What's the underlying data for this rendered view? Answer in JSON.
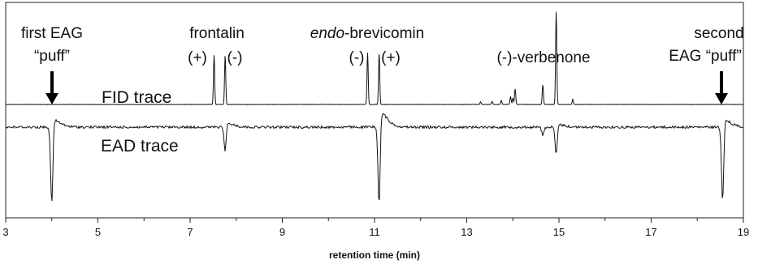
{
  "chart_data": {
    "type": "line",
    "xlabel": "retention time (min)",
    "ylabel": "",
    "xlim": [
      3,
      19
    ],
    "xticks": [
      "3",
      "5",
      "7",
      "9",
      "11",
      "13",
      "15",
      "17",
      "19"
    ],
    "trace_labels": {
      "fid": "FID trace",
      "ead": "EAD trace"
    },
    "series": [
      {
        "name": "FID trace",
        "baseline": 0,
        "peaks": [
          {
            "x": 7.52,
            "height": 0.95
          },
          {
            "x": 7.76,
            "height": 0.95
          },
          {
            "x": 10.85,
            "height": 1.0
          },
          {
            "x": 11.1,
            "height": 1.0
          },
          {
            "x": 13.3,
            "height": 0.05
          },
          {
            "x": 13.55,
            "height": 0.06
          },
          {
            "x": 13.75,
            "height": 0.08
          },
          {
            "x": 13.95,
            "height": 0.15
          },
          {
            "x": 14.0,
            "height": 0.12
          },
          {
            "x": 14.05,
            "height": 0.3
          },
          {
            "x": 14.65,
            "height": 0.38
          },
          {
            "x": 14.94,
            "height": 1.8
          },
          {
            "x": 15.3,
            "height": 0.1
          }
        ]
      },
      {
        "name": "EAD trace",
        "baseline": 0,
        "deflections": [
          {
            "x": 4.0,
            "depth": 1.0,
            "recovery": 0.14
          },
          {
            "x": 7.76,
            "depth": 0.3,
            "recovery": 0.08
          },
          {
            "x": 11.1,
            "depth": 1.0,
            "recovery": 0.28
          },
          {
            "x": 14.65,
            "depth": 0.1,
            "recovery": 0.0
          },
          {
            "x": 14.94,
            "depth": 0.35,
            "recovery": 0.05
          },
          {
            "x": 18.55,
            "depth": 0.95,
            "recovery": 0.14
          }
        ]
      }
    ],
    "annotations": {
      "first_puff_line1": "first EAG",
      "first_puff_line2": "“puff”",
      "frontalin": "frontalin",
      "frontalin_plus": "(+)",
      "frontalin_minus": "(-)",
      "brevicomin_italic": "endo",
      "brevicomin_rest": "-brevicomin",
      "brevicomin_minus": "(-)",
      "brevicomin_plus": "(+)",
      "verbenone": "(-)-verbenone",
      "second_puff_line1": "second",
      "second_puff_line2": "EAG “puff”"
    }
  }
}
